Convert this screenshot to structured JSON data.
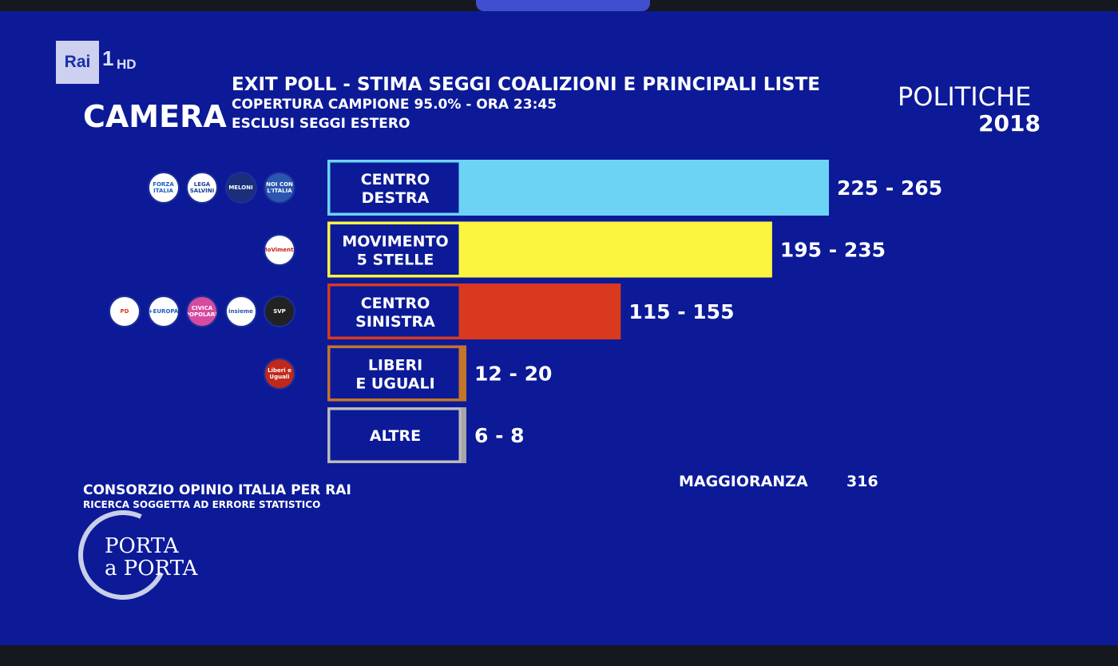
{
  "channel": {
    "logo": "Rai",
    "number": "1",
    "quality": "HD"
  },
  "header": {
    "chamber": "CAMERA",
    "title": "EXIT POLL - STIMA SEGGI COALIZIONI E PRINCIPALI LISTE",
    "subtitle": "COPERTURA CAMPIONE 95.0% - ORA 23:45",
    "note": "ESCLUSI SEGGI ESTERO",
    "election_line1": "POLITICHE",
    "election_line2": "2018"
  },
  "chart_data": {
    "type": "bar",
    "orientation": "horizontal",
    "title": "EXIT POLL - STIMA SEGGI COALIZIONI E PRINCIPALI LISTE",
    "categories": [
      "CENTRO DESTRA",
      "MOVIMENTO 5 STELLE",
      "CENTRO SINISTRA",
      "LIBERI E UGUALI",
      "ALTRE"
    ],
    "label_lines": [
      [
        "CENTRO",
        "DESTRA"
      ],
      [
        "MOVIMENTO",
        "5 STELLE"
      ],
      [
        "CENTRO",
        "SINISTRA"
      ],
      [
        "LIBERI",
        "E UGUALI"
      ],
      [
        "ALTRE"
      ]
    ],
    "ranges": [
      [
        225,
        265
      ],
      [
        195,
        235
      ],
      [
        115,
        155
      ],
      [
        12,
        20
      ],
      [
        6,
        8
      ]
    ],
    "value_labels": [
      "225 - 265",
      "195 - 235",
      "115 - 155",
      "12 - 20",
      "6 - 8"
    ],
    "colors": [
      "#6dd3f5",
      "#fbf53f",
      "#d9391f",
      "#c4752a",
      "#a6a6a6"
    ],
    "border_colors": [
      "#6dd3f5",
      "#fbf53f",
      "#d9391f",
      "#c4752a",
      "#bdbdbd"
    ],
    "xlim": [
      0,
      265
    ],
    "grid": false,
    "legend": "none"
  },
  "party_logos": [
    [
      {
        "icon": "forza-italia-logo",
        "text": "FORZA ITALIA",
        "bg": "#ffffff",
        "fg": "#1a5fbf"
      },
      {
        "icon": "lega-logo",
        "text": "LEGA SALVINI",
        "bg": "#ffffff",
        "fg": "#1a3f9a"
      },
      {
        "icon": "fratelli-italia-logo",
        "text": "MELONI",
        "bg": "#1a2e7c",
        "fg": "#ffffff"
      },
      {
        "icon": "noi-con-italia-logo",
        "text": "NOI CON L'ITALIA",
        "bg": "#2a56b0",
        "fg": "#ffffff"
      }
    ],
    [
      {
        "icon": "movimento-5-stelle-logo",
        "text": "MoVimento",
        "bg": "#ffffff",
        "fg": "#c0281c"
      }
    ],
    [
      {
        "icon": "pd-logo",
        "text": "PD",
        "bg": "#ffffff",
        "fg": "#d9391f"
      },
      {
        "icon": "piu-europa-logo",
        "text": "+EUROPA",
        "bg": "#ffffff",
        "fg": "#1a5fbf"
      },
      {
        "icon": "civica-popolare-logo",
        "text": "CIVICA POPOLARE",
        "bg": "#d64aa0",
        "fg": "#ffffff"
      },
      {
        "icon": "insieme-logo",
        "text": "insieme",
        "bg": "#ffffff",
        "fg": "#2a56b0"
      },
      {
        "icon": "svp-logo",
        "text": "SVP",
        "bg": "#222222",
        "fg": "#ffffff"
      }
    ],
    [
      {
        "icon": "liberi-e-uguali-logo",
        "text": "Liberi e Uguali",
        "bg": "#c0281c",
        "fg": "#ffffff"
      }
    ],
    []
  ],
  "footer": {
    "source": "CONSORZIO OPINIO ITALIA PER RAI",
    "disclaimer": "RICERCA SOGGETTA AD ERRORE STATISTICO",
    "majority_label": "MAGGIORANZA",
    "majority_value": "316",
    "show_line1": "PORTA",
    "show_line2": "a PORTA"
  }
}
